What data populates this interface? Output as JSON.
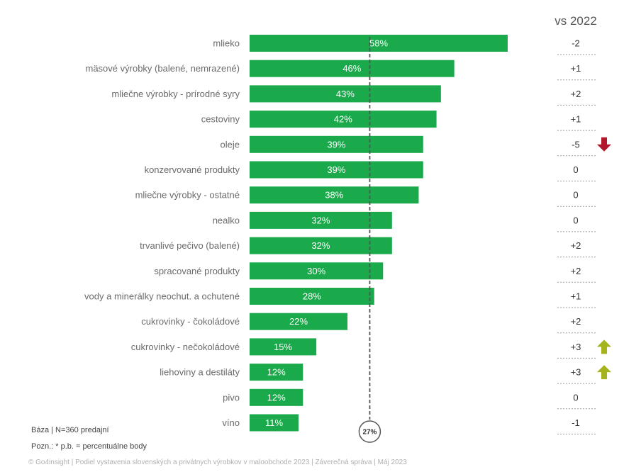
{
  "header": {
    "vs_label": "vs 2022"
  },
  "chart_data": {
    "type": "bar",
    "orientation": "horizontal",
    "categories": [
      "mlieko",
      "mäsové výrobky (balené, nemrazené)",
      "mliečne výrobky - prírodné syry",
      "cestoviny",
      "oleje",
      "konzervované produkty",
      "mliečne výrobky - ostatné",
      "nealko",
      "trvanlivé pečivo (balené)",
      "spracované produkty",
      "vody a minerálky neochut. a ochutené",
      "cukrovinky - čokoládové",
      "cukrovinky - nečokoládové",
      "liehoviny a destiláty",
      "pivo",
      "víno"
    ],
    "values": [
      58,
      46,
      43,
      42,
      39,
      39,
      38,
      32,
      32,
      30,
      28,
      22,
      15,
      12,
      12,
      11
    ],
    "value_labels": [
      "58%",
      "46%",
      "43%",
      "42%",
      "39%",
      "39%",
      "38%",
      "32%",
      "32%",
      "30%",
      "28%",
      "22%",
      "15%",
      "12%",
      "12%",
      "11%"
    ],
    "deltas": [
      "-2",
      "+1",
      "+2",
      "+1",
      "-5",
      "0",
      "0",
      "0",
      "+2",
      "+2",
      "+1",
      "+2",
      "+3",
      "+3",
      "0",
      "-1"
    ],
    "delta_arrows": [
      "",
      "",
      "",
      "",
      "down",
      "",
      "",
      "",
      "",
      "",
      "",
      "",
      "up",
      "up",
      "",
      ""
    ],
    "average": {
      "value": 27,
      "label": "27%"
    },
    "xlim": [
      0,
      58
    ],
    "colors": {
      "bar": "#1aaa4b",
      "arrow_up": "#a5b31d",
      "arrow_down": "#b2182b"
    }
  },
  "notes": {
    "base": "Báza | N=360 predajní",
    "remark": "Pozn.: * p.b. = percentuálne body"
  },
  "footer": "© Go4insight | Podiel vystavenia slovenských a privátnych výrobkov v maloobchode 2023 | Záverečná správa | Máj 2023"
}
